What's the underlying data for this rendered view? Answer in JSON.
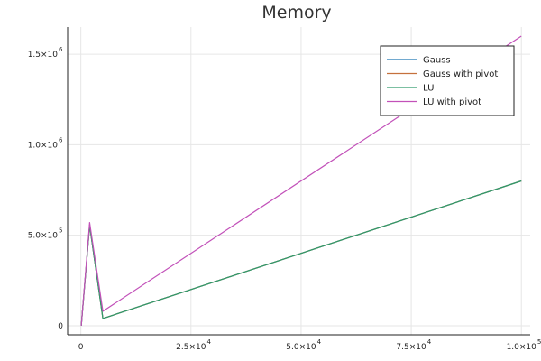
{
  "chart_data": {
    "type": "line",
    "title": "Memory",
    "xlabel": "",
    "ylabel": "",
    "grid": true,
    "legend_position": "top-right",
    "xlim": [
      -3000,
      102000
    ],
    "ylim": [
      -50000,
      1650000
    ],
    "x_ticks": [
      {
        "value": 0,
        "mantissa": "0",
        "exp": ""
      },
      {
        "value": 25000,
        "mantissa": "2.5×10",
        "exp": "4"
      },
      {
        "value": 50000,
        "mantissa": "5.0×10",
        "exp": "4"
      },
      {
        "value": 75000,
        "mantissa": "7.5×10",
        "exp": "4"
      },
      {
        "value": 100000,
        "mantissa": "1.0×10",
        "exp": "5"
      }
    ],
    "y_ticks": [
      {
        "value": 0,
        "mantissa": "0",
        "exp": ""
      },
      {
        "value": 500000,
        "mantissa": "5.0×10",
        "exp": "5"
      },
      {
        "value": 1000000,
        "mantissa": "1.0×10",
        "exp": "6"
      },
      {
        "value": 1500000,
        "mantissa": "1.5×10",
        "exp": "6"
      }
    ],
    "series": [
      {
        "name": "Gauss",
        "color": "#1f77b4",
        "x": [
          100,
          2000,
          5000,
          100000
        ],
        "y": [
          0,
          555000,
          40000,
          800000
        ]
      },
      {
        "name": "Gauss with pivot",
        "color": "#c5713d",
        "x": [
          100,
          2000,
          5000,
          100000
        ],
        "y": [
          0,
          555000,
          40000,
          800000
        ]
      },
      {
        "name": "LU",
        "color": "#2e9b6a",
        "x": [
          100,
          2000,
          5000,
          100000
        ],
        "y": [
          0,
          555000,
          40000,
          800000
        ]
      },
      {
        "name": "LU with pivot",
        "color": "#c251b9",
        "x": [
          100,
          2000,
          5000,
          100000
        ],
        "y": [
          0,
          570000,
          80000,
          1600000
        ]
      }
    ]
  }
}
